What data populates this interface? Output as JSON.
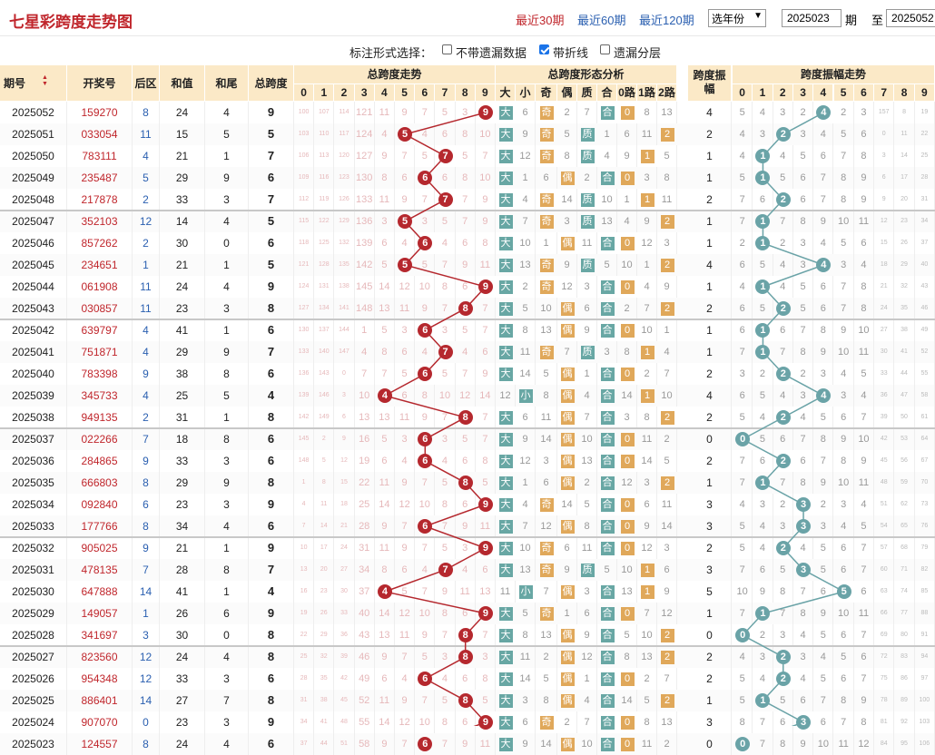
{
  "header": {
    "title": "七星彩跨度走势图",
    "recent30": "最近30期",
    "recent60": "最近60期",
    "recent120": "最近120期",
    "year_select": "选年份",
    "from_value": "2025023",
    "issue_label": "期",
    "to_label": "至",
    "to_value": "2025052"
  },
  "options": {
    "label": "标注形式选择：",
    "opt1": "不带遗漏数据",
    "opt2": "带折线",
    "opt3": "遗漏分层",
    "opt1_checked": false,
    "opt2_checked": true,
    "opt3_checked": false
  },
  "columns": {
    "period": "期号",
    "draw": "开奖号",
    "back": "后区",
    "sum": "和值",
    "tail": "和尾",
    "span": "总跨度",
    "trend_title": "总跨度走势",
    "shape_title": "总跨度形态分析",
    "amp_title": "跨度振幅",
    "ampt_title": "跨度振幅走势",
    "digits": [
      "0",
      "1",
      "2",
      "3",
      "4",
      "5",
      "6",
      "7",
      "8",
      "9"
    ],
    "shape_cols": [
      "大",
      "小",
      "奇",
      "偶",
      "质",
      "合",
      "0路",
      "1路",
      "2路"
    ]
  },
  "colors": {
    "red": "#b5282e",
    "teal": "#6aa3a7",
    "orange": "#e0a85a",
    "header_bg": "#fbe9c7",
    "blue_link": "#2a5fb0"
  },
  "rows": [
    {
      "p": "2025052",
      "d": "159270",
      "b": "8",
      "s": "24",
      "t": "4",
      "sp": "9",
      "amp": "4"
    },
    {
      "p": "2025051",
      "d": "033054",
      "b": "11",
      "s": "15",
      "t": "5",
      "sp": "5",
      "amp": "2"
    },
    {
      "p": "2025050",
      "d": "783111",
      "b": "4",
      "s": "21",
      "t": "1",
      "sp": "7",
      "amp": "1"
    },
    {
      "p": "2025049",
      "d": "235487",
      "b": "5",
      "s": "29",
      "t": "9",
      "sp": "6",
      "amp": "1"
    },
    {
      "p": "2025048",
      "d": "217878",
      "b": "2",
      "s": "33",
      "t": "3",
      "sp": "7",
      "amp": "2"
    },
    {
      "p": "2025047",
      "d": "352103",
      "b": "12",
      "s": "14",
      "t": "4",
      "sp": "5",
      "amp": "1"
    },
    {
      "p": "2025046",
      "d": "857262",
      "b": "2",
      "s": "30",
      "t": "0",
      "sp": "6",
      "amp": "1"
    },
    {
      "p": "2025045",
      "d": "234651",
      "b": "1",
      "s": "21",
      "t": "1",
      "sp": "5",
      "amp": "4"
    },
    {
      "p": "2025044",
      "d": "061908",
      "b": "11",
      "s": "24",
      "t": "4",
      "sp": "9",
      "amp": "1"
    },
    {
      "p": "2025043",
      "d": "030857",
      "b": "11",
      "s": "23",
      "t": "3",
      "sp": "8",
      "amp": "2"
    },
    {
      "p": "2025042",
      "d": "639797",
      "b": "4",
      "s": "41",
      "t": "1",
      "sp": "6",
      "amp": "1"
    },
    {
      "p": "2025041",
      "d": "751871",
      "b": "4",
      "s": "29",
      "t": "9",
      "sp": "7",
      "amp": "1"
    },
    {
      "p": "2025040",
      "d": "783398",
      "b": "9",
      "s": "38",
      "t": "8",
      "sp": "6",
      "amp": "2"
    },
    {
      "p": "2025039",
      "d": "345733",
      "b": "4",
      "s": "25",
      "t": "5",
      "sp": "4",
      "amp": "4"
    },
    {
      "p": "2025038",
      "d": "949135",
      "b": "2",
      "s": "31",
      "t": "1",
      "sp": "8",
      "amp": "2"
    },
    {
      "p": "2025037",
      "d": "022266",
      "b": "7",
      "s": "18",
      "t": "8",
      "sp": "6",
      "amp": "0"
    },
    {
      "p": "2025036",
      "d": "284865",
      "b": "9",
      "s": "33",
      "t": "3",
      "sp": "6",
      "amp": "2"
    },
    {
      "p": "2025035",
      "d": "666803",
      "b": "8",
      "s": "29",
      "t": "9",
      "sp": "8",
      "amp": "1"
    },
    {
      "p": "2025034",
      "d": "092840",
      "b": "6",
      "s": "23",
      "t": "3",
      "sp": "9",
      "amp": "3"
    },
    {
      "p": "2025033",
      "d": "177766",
      "b": "8",
      "s": "34",
      "t": "4",
      "sp": "6",
      "amp": "3"
    },
    {
      "p": "2025032",
      "d": "905025",
      "b": "9",
      "s": "21",
      "t": "1",
      "sp": "9",
      "amp": "2"
    },
    {
      "p": "2025031",
      "d": "478135",
      "b": "7",
      "s": "28",
      "t": "8",
      "sp": "7",
      "amp": "3"
    },
    {
      "p": "2025030",
      "d": "647888",
      "b": "14",
      "s": "41",
      "t": "1",
      "sp": "4",
      "amp": "5"
    },
    {
      "p": "2025029",
      "d": "149057",
      "b": "1",
      "s": "26",
      "t": "6",
      "sp": "9",
      "amp": "1"
    },
    {
      "p": "2025028",
      "d": "341697",
      "b": "3",
      "s": "30",
      "t": "0",
      "sp": "8",
      "amp": "0"
    },
    {
      "p": "2025027",
      "d": "823560",
      "b": "12",
      "s": "24",
      "t": "4",
      "sp": "8",
      "amp": "2"
    },
    {
      "p": "2025026",
      "d": "954348",
      "b": "12",
      "s": "33",
      "t": "3",
      "sp": "6",
      "amp": "2"
    },
    {
      "p": "2025025",
      "d": "886401",
      "b": "14",
      "s": "27",
      "t": "7",
      "sp": "8",
      "amp": "1"
    },
    {
      "p": "2025024",
      "d": "907070",
      "b": "0",
      "s": "23",
      "t": "3",
      "sp": "9",
      "amp": "3"
    },
    {
      "p": "2025023",
      "d": "124557",
      "b": "8",
      "s": "24",
      "t": "4",
      "sp": "6",
      "amp": "0"
    }
  ]
}
